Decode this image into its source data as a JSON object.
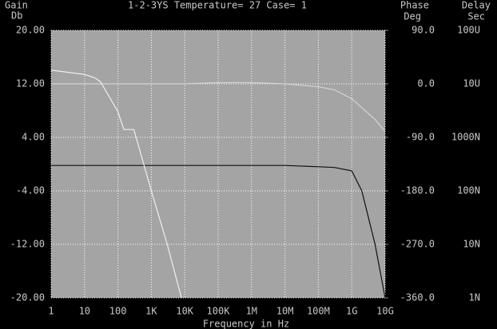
{
  "chart_data": {
    "type": "line",
    "title": "1-2-3YS Temperature= 27 Case= 1",
    "y_title": [
      "Gain",
      "Db"
    ],
    "y2_title": [
      "Phase",
      "Deg"
    ],
    "y3_title": [
      "Delay",
      "Sec"
    ],
    "x_label": "Frequency in Hz",
    "x_log": true,
    "y3_log": true,
    "grid": true,
    "xlim": [
      1,
      10000000000
    ],
    "xticks": [
      1,
      10,
      100,
      {
        "value": 1000,
        "label": "1K"
      },
      {
        "value": 10000,
        "label": "10K"
      },
      {
        "value": 100000,
        "label": "100K"
      },
      {
        "value": 1000000,
        "label": "1M"
      },
      {
        "value": 10000000,
        "label": "10M"
      },
      {
        "value": 100000000,
        "label": "100M"
      },
      {
        "value": 1000000000,
        "label": "1G"
      },
      {
        "value": 10000000000,
        "label": "10G"
      }
    ],
    "ylim": [
      -20,
      20
    ],
    "yticks": [
      {
        "value": 20,
        "label": "20.00"
      },
      {
        "value": 12,
        "label": "12.00"
      },
      {
        "value": 4,
        "label": "4.00"
      },
      {
        "value": -4,
        "label": "-4.00"
      },
      {
        "value": -12,
        "label": "-12.00"
      },
      {
        "value": -20,
        "label": "-20.00"
      }
    ],
    "y2lim": [
      -360,
      90
    ],
    "y2ticks": [
      {
        "value": 90,
        "label": "90.0"
      },
      {
        "value": 0,
        "label": "0.0"
      },
      {
        "value": -90,
        "label": "-90.0"
      },
      {
        "value": -180,
        "label": "-180.0"
      },
      {
        "value": -270,
        "label": "-270.0"
      },
      {
        "value": -360,
        "label": "-360.0"
      }
    ],
    "y3lim": [
      1e-09,
      0.0001
    ],
    "y3ticks": [
      {
        "value": 0.0001,
        "label": "100U"
      },
      {
        "value": 1e-05,
        "label": "10U"
      },
      {
        "value": 1e-06,
        "label": "1000N"
      },
      {
        "value": 1e-07,
        "label": "100N"
      },
      {
        "value": 1e-08,
        "label": "10N"
      },
      {
        "value": 1e-09,
        "label": "1N"
      }
    ],
    "x": [
      1,
      10,
      20,
      30,
      100,
      150,
      300,
      1000,
      3000,
      8000,
      100000,
      1000000,
      10000000,
      100000000,
      300000000,
      1000000000,
      2000000000,
      5000000000,
      10000000000
    ],
    "series": [
      {
        "name": "Gain",
        "color": "#101010",
        "axis": "y",
        "values": [
          -0.2,
          -0.2,
          -0.2,
          -0.2,
          -0.2,
          -0.2,
          -0.2,
          -0.2,
          -0.2,
          -0.2,
          -0.2,
          -0.2,
          -0.2,
          -0.4,
          -0.5,
          -1,
          -4,
          -12,
          -20
        ]
      },
      {
        "name": "Phase",
        "color": "#d4d4d4",
        "axis": "y2",
        "values": [
          0,
          0,
          0,
          0,
          0,
          0,
          0,
          0,
          0,
          0,
          2,
          2,
          0,
          -5,
          -10,
          -25,
          -40,
          -60,
          -80
        ]
      },
      {
        "name": "Delay",
        "color": "#f0f0f0",
        "axis": "y3",
        "values": [
          1.8e-05,
          1.5e-05,
          1.3e-05,
          1.1e-05,
          3e-06,
          1.4e-06,
          1.4e-06,
          1e-07,
          1e-08,
          1e-09,
          null,
          null,
          null,
          null,
          null,
          null,
          null,
          null,
          null
        ]
      }
    ]
  }
}
